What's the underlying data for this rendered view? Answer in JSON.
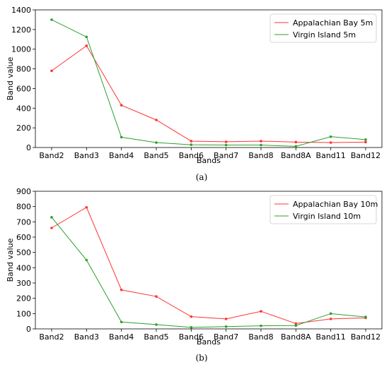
{
  "chart_data": [
    {
      "type": "line",
      "caption": "(a)",
      "categories": [
        "Band2",
        "Band3",
        "Band4",
        "Band5",
        "Band6",
        "Band7",
        "Band8",
        "Band8A",
        "Band11",
        "Band12"
      ],
      "xlabel": "Bands",
      "ylabel": "Band value",
      "ylim": [
        0,
        1400
      ],
      "yticks": [
        0,
        200,
        400,
        600,
        800,
        1000,
        1200,
        1400
      ],
      "legend_position": "top-right",
      "series": [
        {
          "name": "Appalachian Bay 5m",
          "color": "#ff3333",
          "values": [
            780,
            1035,
            430,
            280,
            65,
            58,
            65,
            55,
            50,
            55
          ]
        },
        {
          "name": "Virgin Island 5m",
          "color": "#2ca02c",
          "values": [
            1300,
            1125,
            105,
            50,
            28,
            25,
            25,
            12,
            110,
            80
          ]
        }
      ]
    },
    {
      "type": "line",
      "caption": "(b)",
      "categories": [
        "Band2",
        "Band3",
        "Band4",
        "Band5",
        "Band6",
        "Band7",
        "Band8",
        "Band8A",
        "Band11",
        "Band12"
      ],
      "xlabel": "Bands",
      "ylabel": "Band value",
      "ylim": [
        0,
        900
      ],
      "yticks": [
        0,
        100,
        200,
        300,
        400,
        500,
        600,
        700,
        800,
        900
      ],
      "legend_position": "top-right",
      "series": [
        {
          "name": "Appalachian Bay 10m",
          "color": "#ff3333",
          "values": [
            660,
            795,
            255,
            212,
            80,
            65,
            115,
            35,
            65,
            72
          ]
        },
        {
          "name": "Virgin Island 10m",
          "color": "#2ca02c",
          "values": [
            730,
            450,
            45,
            28,
            10,
            15,
            20,
            22,
            100,
            78
          ]
        }
      ]
    }
  ]
}
